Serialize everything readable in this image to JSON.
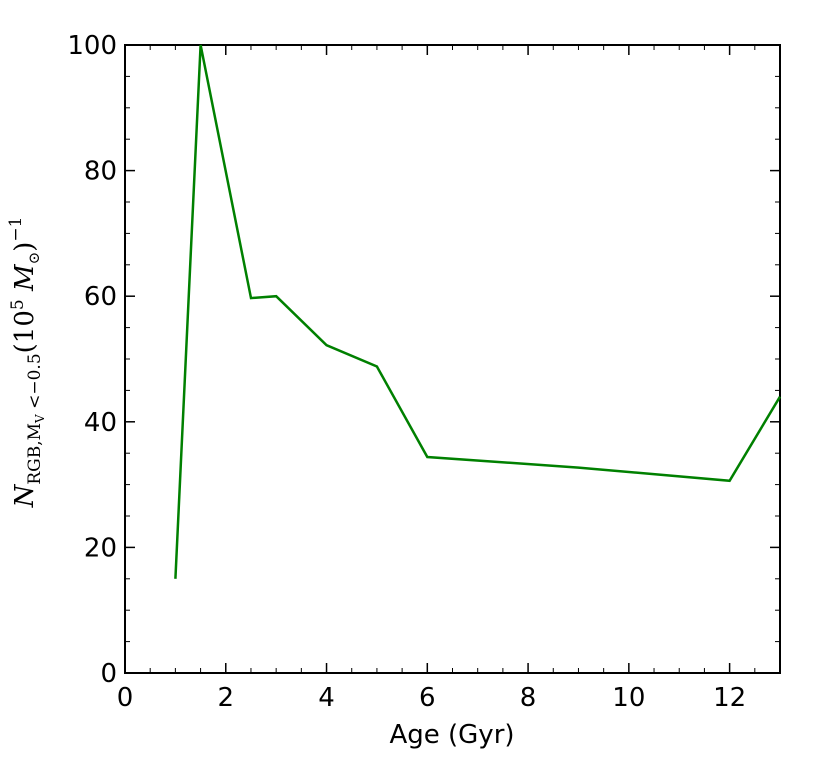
{
  "chart_data": {
    "type": "line",
    "xlabel": "Age (Gyr)",
    "ylabel": {
      "symbol": "N",
      "subscript": "RGB,M",
      "subsub": "V",
      "subscript_tail": " <−0.5",
      "unit_open": "(10",
      "unit_exp": "5",
      "unit_mass": " M",
      "unit_sun": "⊙",
      "unit_close": ")",
      "unit_power": "−1"
    },
    "xlim": [
      0,
      13
    ],
    "ylim": [
      0,
      100
    ],
    "xticks": [
      0,
      2,
      4,
      6,
      8,
      10,
      12
    ],
    "yticks": [
      0,
      20,
      40,
      60,
      80,
      100
    ],
    "grid": false,
    "series": [
      {
        "color": "#008000",
        "x": [
          1.0,
          1.5,
          2.5,
          3.0,
          4.0,
          5.0,
          6.0,
          9.0,
          12.0,
          13.0
        ],
        "y": [
          15.0,
          100.0,
          59.7,
          60.0,
          52.2,
          48.8,
          34.4,
          32.7,
          30.6,
          44.0
        ]
      }
    ]
  }
}
